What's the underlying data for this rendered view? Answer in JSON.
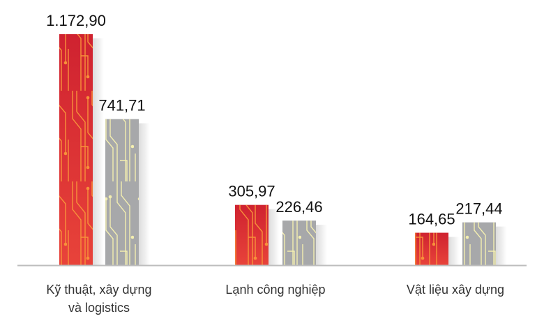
{
  "chart_data": {
    "type": "bar",
    "title": "",
    "xlabel": "",
    "ylabel": "",
    "ylim": [
      0,
      1172.9
    ],
    "grid": false,
    "categories": [
      [
        "Kỹ thuật, xây dựng",
        "và logistics"
      ],
      [
        "Lạnh công nghiệp"
      ],
      [
        "Vật liệu xây dựng"
      ]
    ],
    "series": [
      {
        "values": [
          1172.9,
          305.97,
          164.65
        ],
        "labels": [
          "1.172,90",
          "305,97",
          "164,65"
        ],
        "color": "#d8272c",
        "accent": "#f7913a"
      },
      {
        "values": [
          741.71,
          226.46,
          217.44
        ],
        "labels": [
          "741,71",
          "226,46",
          "217,44"
        ],
        "color": "#a7a8aa",
        "accent": "#f3eeb0"
      }
    ]
  }
}
